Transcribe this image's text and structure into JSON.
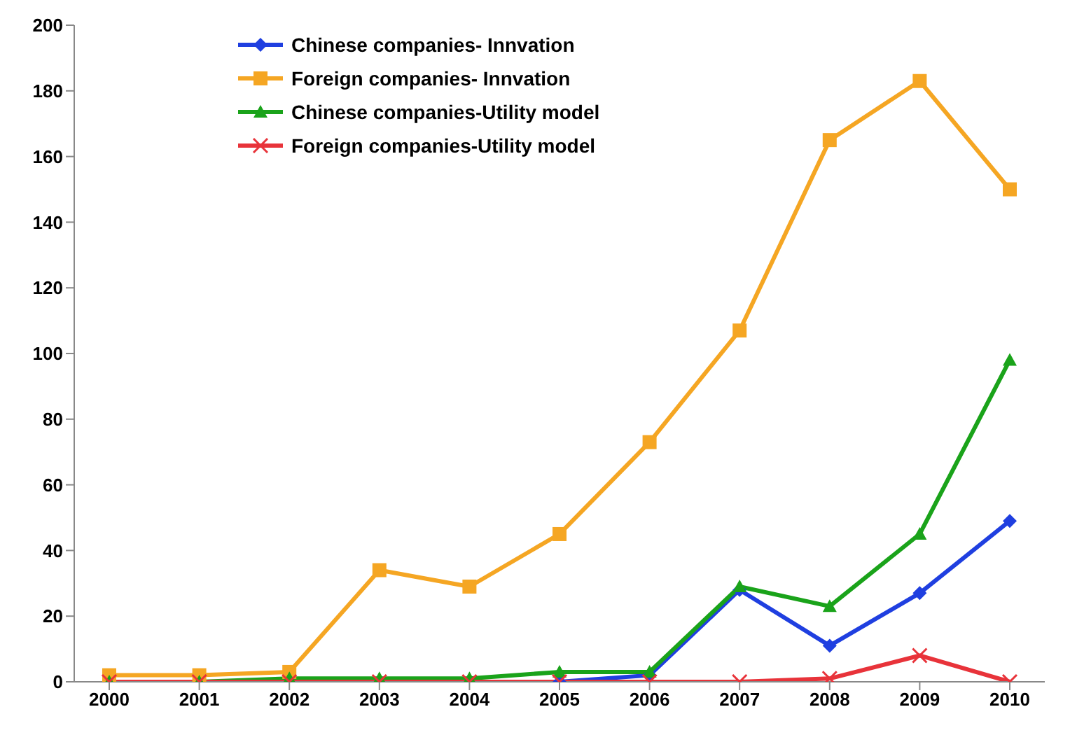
{
  "chart_data": {
    "type": "line",
    "categories": [
      "2000",
      "2001",
      "2002",
      "2003",
      "2004",
      "2005",
      "2006",
      "2007",
      "2008",
      "2009",
      "2010"
    ],
    "series": [
      {
        "name": "Chinese companies- Innvation",
        "color": "#1f3fe0",
        "marker": "diamond",
        "values": [
          null,
          null,
          null,
          null,
          null,
          0,
          2,
          28,
          11,
          27,
          49
        ]
      },
      {
        "name": "Foreign companies- Innvation",
        "color": "#f5a623",
        "marker": "square",
        "values": [
          2,
          2,
          3,
          34,
          29,
          45,
          73,
          107,
          165,
          183,
          150
        ]
      },
      {
        "name": "Chinese companies-Utility model",
        "color": "#1aa31a",
        "marker": "triangle",
        "values": [
          0,
          0,
          1,
          1,
          1,
          3,
          3,
          29,
          23,
          45,
          98
        ]
      },
      {
        "name": "Foreign companies-Utility model",
        "color": "#e8333a",
        "marker": "cross",
        "values": [
          0,
          0,
          0,
          0,
          0,
          0,
          0,
          0,
          1,
          8,
          0
        ]
      }
    ],
    "ylim": [
      0,
      200
    ],
    "yticks": [
      0,
      20,
      40,
      60,
      80,
      100,
      120,
      140,
      160,
      180,
      200
    ],
    "grid": false,
    "legend": "top left"
  }
}
